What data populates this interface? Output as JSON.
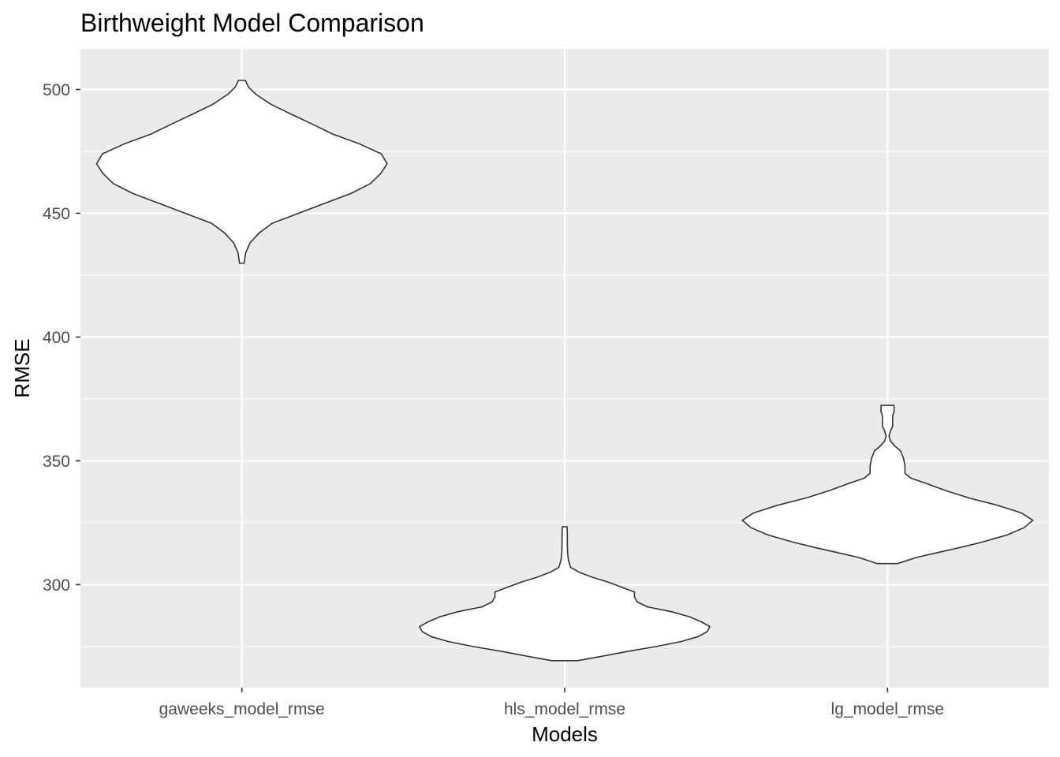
{
  "chart_data": {
    "type": "violin",
    "title": "Birthweight Model Comparison",
    "xlabel": "Models",
    "ylabel": "RMSE",
    "categories": [
      "gaweeks_model_rmse",
      "hls_model_rmse",
      "lg_model_rmse"
    ],
    "ylim": [
      258.4,
      516.4
    ],
    "yticks": [
      300,
      350,
      400,
      450,
      500
    ],
    "grid": true,
    "legend": "none",
    "colors": {
      "panel": "#ebebeb",
      "grid": "#ffffff",
      "violin_fill": "#ffffff",
      "violin_outline": "#333333",
      "tick": "#333333"
    },
    "violins": [
      {
        "category": "gaweeks_model_rmse",
        "min": 429.8,
        "max": 503.7,
        "profile": [
          [
            429.8,
            0.016
          ],
          [
            434.0,
            0.026
          ],
          [
            438.0,
            0.056
          ],
          [
            442.0,
            0.118
          ],
          [
            446.0,
            0.21
          ],
          [
            450.0,
            0.39
          ],
          [
            454.0,
            0.57
          ],
          [
            458.0,
            0.75
          ],
          [
            462.0,
            0.885
          ],
          [
            466.0,
            0.955
          ],
          [
            470.0,
            1.0
          ],
          [
            474.0,
            0.96
          ],
          [
            478.0,
            0.81
          ],
          [
            482.0,
            0.625
          ],
          [
            486.0,
            0.485
          ],
          [
            490.0,
            0.34
          ],
          [
            494.0,
            0.2
          ],
          [
            498.0,
            0.098
          ],
          [
            501.0,
            0.045
          ],
          [
            503.7,
            0.024
          ]
        ]
      },
      {
        "category": "hls_model_rmse",
        "min": 269.3,
        "max": 323.4,
        "profile": [
          [
            269.3,
            0.09
          ],
          [
            271.0,
            0.25
          ],
          [
            273.0,
            0.43
          ],
          [
            275.0,
            0.63
          ],
          [
            277.0,
            0.8
          ],
          [
            279.0,
            0.92
          ],
          [
            281.0,
            0.98
          ],
          [
            283.0,
            1.0
          ],
          [
            285.0,
            0.94
          ],
          [
            287.0,
            0.86
          ],
          [
            289.0,
            0.74
          ],
          [
            291.0,
            0.57
          ],
          [
            293.0,
            0.5
          ],
          [
            295.0,
            0.48
          ],
          [
            297.0,
            0.48
          ],
          [
            299.0,
            0.39
          ],
          [
            301.0,
            0.3
          ],
          [
            303.0,
            0.19
          ],
          [
            305.0,
            0.1
          ],
          [
            307.0,
            0.04
          ],
          [
            310.0,
            0.025
          ],
          [
            313.0,
            0.02
          ],
          [
            317.0,
            0.018
          ],
          [
            321.0,
            0.018
          ],
          [
            323.4,
            0.016
          ]
        ]
      },
      {
        "category": "lg_model_rmse",
        "min": 308.5,
        "max": 372.4,
        "profile": [
          [
            308.5,
            0.07
          ],
          [
            311.0,
            0.2
          ],
          [
            313.0,
            0.35
          ],
          [
            315.0,
            0.5
          ],
          [
            317.0,
            0.64
          ],
          [
            320.0,
            0.82
          ],
          [
            323.0,
            0.94
          ],
          [
            326.0,
            1.0
          ],
          [
            329.0,
            0.92
          ],
          [
            332.0,
            0.76
          ],
          [
            335.0,
            0.56
          ],
          [
            338.0,
            0.4
          ],
          [
            341.0,
            0.26
          ],
          [
            343.0,
            0.16
          ],
          [
            345.0,
            0.12
          ],
          [
            348.0,
            0.12
          ],
          [
            351.0,
            0.11
          ],
          [
            354.0,
            0.09
          ],
          [
            356.0,
            0.05
          ],
          [
            358.0,
            0.02
          ],
          [
            360.0,
            0.01
          ],
          [
            362.0,
            0.02
          ],
          [
            364.0,
            0.035
          ],
          [
            366.0,
            0.035
          ],
          [
            368.0,
            0.035
          ],
          [
            370.0,
            0.045
          ],
          [
            372.4,
            0.045
          ]
        ]
      }
    ]
  }
}
